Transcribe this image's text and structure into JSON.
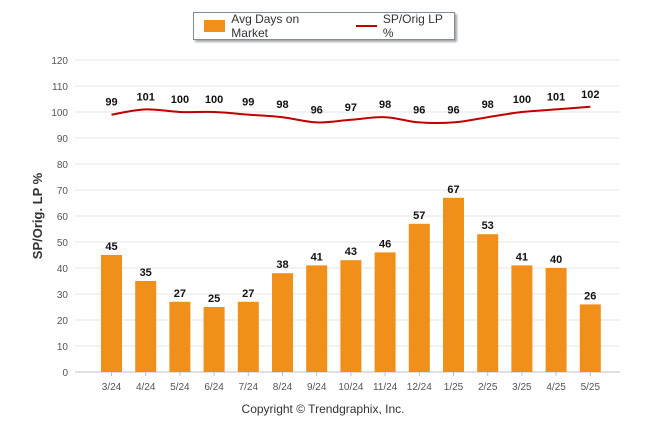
{
  "legend": {
    "bar_label": "Avg Days on Market",
    "line_label": "SP/Orig LP %"
  },
  "footer": "Copyright © Trendgraphix, Inc.",
  "colors": {
    "bar": "#f0901a",
    "line": "#c00000",
    "grid": "#e6e6e6",
    "axis_text": "#555555"
  },
  "chart_data": {
    "type": "bar",
    "title": "",
    "xlabel": "",
    "ylabel": "SP/Orig. LP %",
    "ylim": [
      0,
      120
    ],
    "yticks": [
      0,
      10,
      20,
      30,
      40,
      50,
      60,
      70,
      80,
      90,
      100,
      110,
      120
    ],
    "grid": true,
    "legend_position": "top",
    "categories": [
      "3/24",
      "4/24",
      "5/24",
      "6/24",
      "7/24",
      "8/24",
      "9/24",
      "10/24",
      "11/24",
      "12/24",
      "1/25",
      "2/25",
      "3/25",
      "4/25",
      "5/25"
    ],
    "series": [
      {
        "name": "Avg Days on Market",
        "type": "bar",
        "values": [
          45,
          35,
          27,
          25,
          27,
          38,
          41,
          43,
          46,
          57,
          67,
          53,
          41,
          40,
          26
        ]
      },
      {
        "name": "SP/Orig LP %",
        "type": "line",
        "values": [
          99,
          101,
          100,
          100,
          99,
          98,
          96,
          97,
          98,
          96,
          96,
          98,
          100,
          101,
          102
        ]
      }
    ]
  }
}
